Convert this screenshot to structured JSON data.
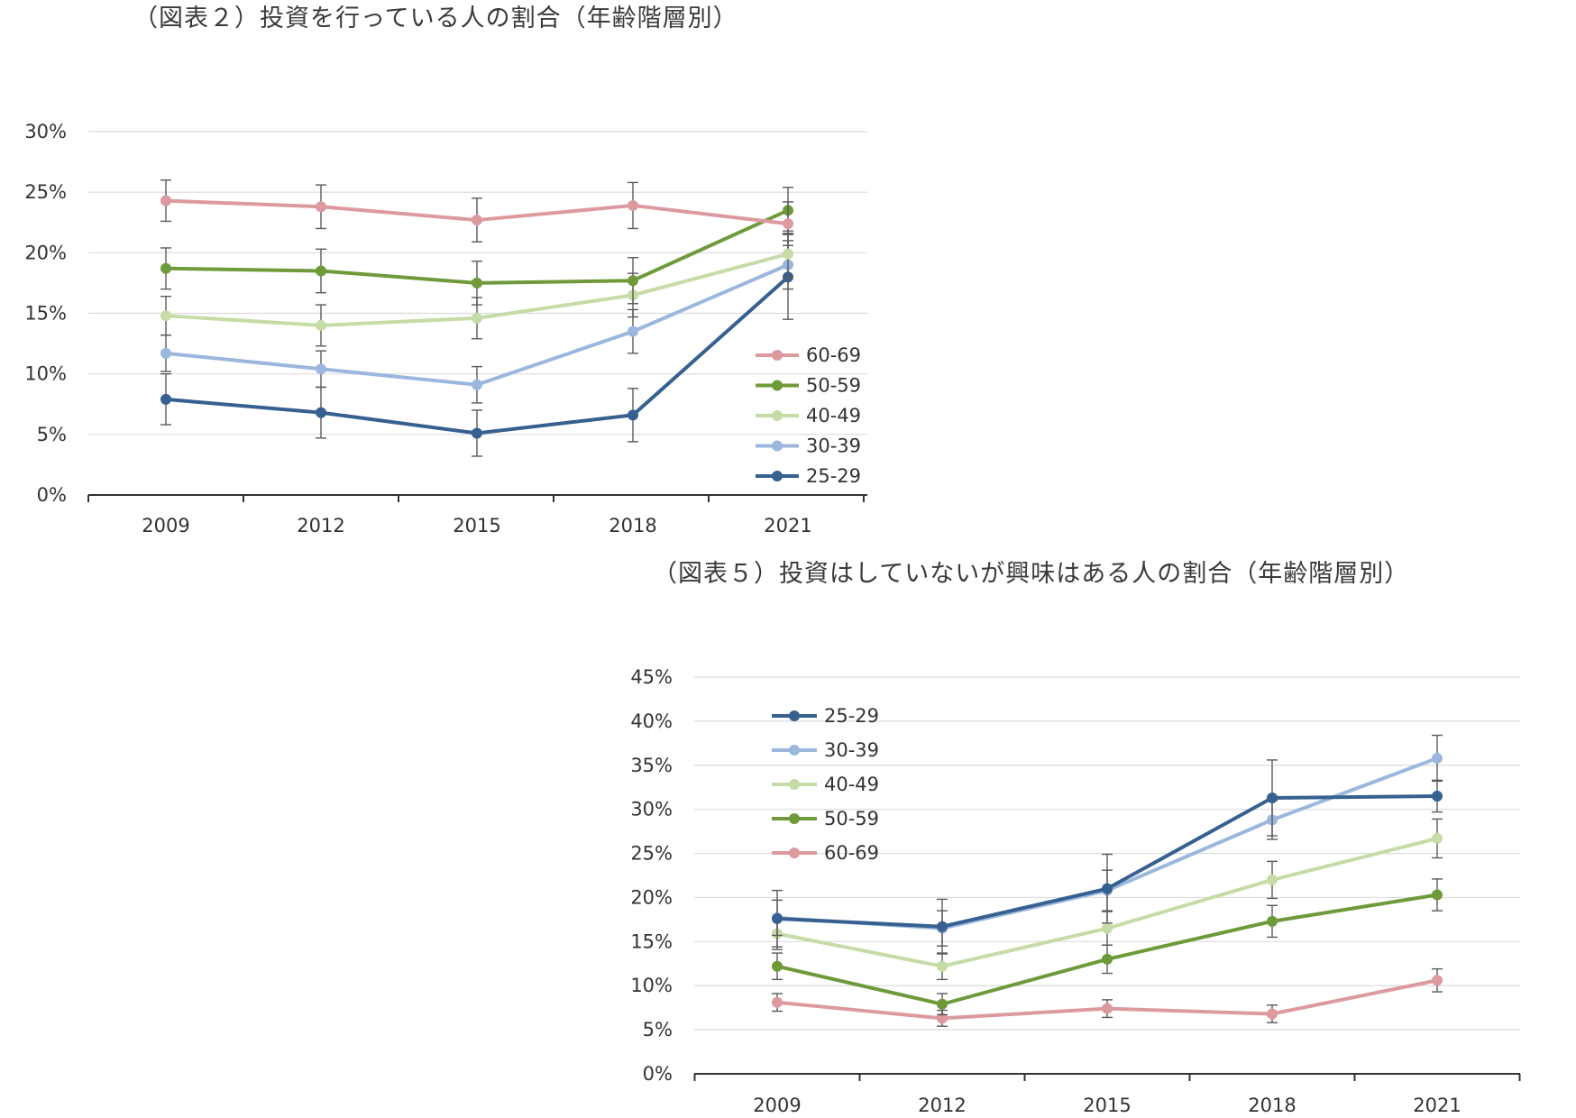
{
  "chart_data": [
    {
      "type": "line",
      "title": "（図表２）投資を行っている人の割合（年齢階層別）",
      "categories": [
        "2009",
        "2012",
        "2015",
        "2018",
        "2021"
      ],
      "y_ticks": [
        "0%",
        "5%",
        "10%",
        "15%",
        "20%",
        "25%",
        "30%"
      ],
      "ylim": [
        0,
        30
      ],
      "grid": true,
      "error_bars": true,
      "legend_position": "right",
      "legend_order": [
        "60-69",
        "50-59",
        "40-49",
        "30-39",
        "25-29"
      ],
      "series": [
        {
          "name": "60-69",
          "color": "#dc9a9e",
          "values": [
            24.3,
            23.8,
            22.7,
            23.9,
            22.4
          ],
          "err": [
            1.7,
            1.8,
            1.8,
            1.9,
            1.8
          ]
        },
        {
          "name": "50-59",
          "color": "#6f9a3a",
          "values": [
            18.7,
            18.5,
            17.5,
            17.7,
            23.5
          ],
          "err": [
            1.7,
            1.8,
            1.8,
            1.9,
            1.9
          ]
        },
        {
          "name": "40-49",
          "color": "#c5dca6",
          "values": [
            14.8,
            14.0,
            14.6,
            16.5,
            19.9
          ],
          "err": [
            1.6,
            1.7,
            1.7,
            1.8,
            1.9
          ]
        },
        {
          "name": "30-39",
          "color": "#9bb7de",
          "values": [
            11.7,
            10.4,
            9.1,
            13.5,
            19.0
          ],
          "err": [
            1.5,
            1.5,
            1.5,
            1.8,
            2.0
          ]
        },
        {
          "name": "25-29",
          "color": "#36608f",
          "values": [
            7.9,
            6.8,
            5.1,
            6.6,
            18.0
          ],
          "err": [
            2.1,
            2.1,
            1.9,
            2.2,
            3.5
          ]
        }
      ]
    },
    {
      "type": "line",
      "title": "（図表５）投資はしていないが興味はある人の割合（年齢階層別）",
      "categories": [
        "2009",
        "2012",
        "2015",
        "2018",
        "2021"
      ],
      "y_ticks": [
        "0%",
        "5%",
        "10%",
        "15%",
        "20%",
        "25%",
        "30%",
        "35%",
        "40%",
        "45%"
      ],
      "ylim": [
        0,
        45
      ],
      "grid": true,
      "error_bars": true,
      "legend_position": "top-left",
      "legend_order": [
        "25-29",
        "30-39",
        "40-49",
        "50-59",
        "60-69"
      ],
      "series": [
        {
          "name": "25-29",
          "color": "#36608f",
          "values": [
            17.6,
            16.7,
            21.0,
            31.3,
            31.5
          ],
          "err": [
            3.2,
            3.1,
            3.9,
            4.3,
            1.8
          ]
        },
        {
          "name": "30-39",
          "color": "#9bb7de",
          "values": [
            17.7,
            16.5,
            20.8,
            28.8,
            35.8
          ],
          "err": [
            2.0,
            2.0,
            2.3,
            2.2,
            2.6
          ]
        },
        {
          "name": "40-49",
          "color": "#c5dca6",
          "values": [
            15.9,
            12.2,
            16.5,
            22.0,
            26.7
          ],
          "err": [
            1.8,
            1.5,
            1.9,
            2.1,
            2.2
          ]
        },
        {
          "name": "50-59",
          "color": "#6f9a3a",
          "values": [
            12.2,
            7.9,
            13.0,
            17.3,
            20.3
          ],
          "err": [
            1.5,
            1.2,
            1.6,
            1.8,
            1.8
          ]
        },
        {
          "name": "60-69",
          "color": "#dc9a9e",
          "values": [
            8.1,
            6.3,
            7.4,
            6.8,
            10.6
          ],
          "err": [
            1.0,
            0.9,
            1.0,
            1.0,
            1.3
          ]
        }
      ]
    }
  ]
}
